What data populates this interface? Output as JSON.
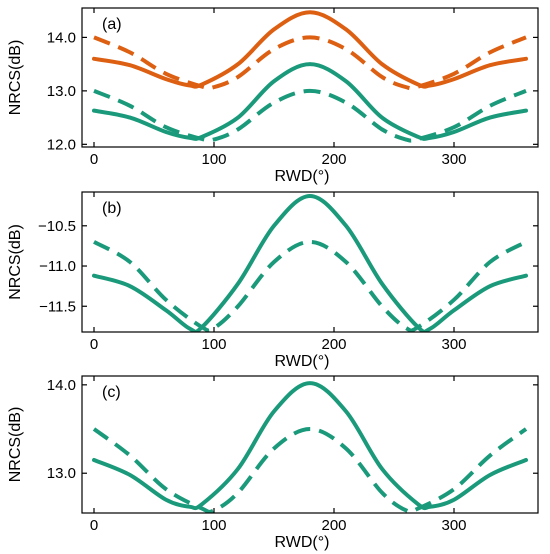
{
  "colors": {
    "orange": "#dd5f12",
    "green": "#1a9a7a"
  },
  "chart_data": [
    {
      "type": "line",
      "panel_label": "(a)",
      "xlabel": "RWD(°)",
      "ylabel": "NRCS(dB)",
      "xlim": [
        -10,
        370
      ],
      "ylim": [
        11.95,
        14.55
      ],
      "xticks": [
        0,
        100,
        200,
        300
      ],
      "xtick_labels": [
        "0",
        "100",
        "200",
        "300"
      ],
      "yticks": [
        12.0,
        13.0,
        14.0
      ],
      "ytick_labels": [
        "12.0",
        "13.0",
        "14.0"
      ],
      "grid": false,
      "series": [
        {
          "color": "orange",
          "dash": false,
          "x": [
            0,
            30,
            60,
            80,
            90,
            120,
            150,
            180,
            210,
            240,
            270,
            280,
            300,
            330,
            360
          ],
          "y": [
            13.6,
            13.48,
            13.22,
            13.1,
            13.12,
            13.5,
            14.15,
            14.47,
            14.15,
            13.5,
            13.12,
            13.1,
            13.22,
            13.48,
            13.6
          ]
        },
        {
          "color": "orange",
          "dash": true,
          "x": [
            0,
            30,
            60,
            90,
            100,
            120,
            150,
            180,
            210,
            240,
            260,
            270,
            300,
            330,
            360
          ],
          "y": [
            14.0,
            13.72,
            13.32,
            13.08,
            13.07,
            13.26,
            13.78,
            14.0,
            13.78,
            13.26,
            13.07,
            13.08,
            13.32,
            13.72,
            14.0
          ]
        },
        {
          "color": "green",
          "dash": false,
          "x": [
            0,
            30,
            60,
            80,
            90,
            120,
            150,
            180,
            210,
            240,
            270,
            280,
            300,
            330,
            360
          ],
          "y": [
            12.63,
            12.5,
            12.23,
            12.12,
            12.14,
            12.5,
            13.18,
            13.5,
            13.18,
            12.5,
            12.14,
            12.12,
            12.23,
            12.5,
            12.63
          ]
        },
        {
          "color": "green",
          "dash": true,
          "x": [
            0,
            30,
            60,
            90,
            100,
            120,
            150,
            180,
            210,
            240,
            260,
            270,
            300,
            330,
            360
          ],
          "y": [
            13.0,
            12.72,
            12.32,
            12.1,
            12.09,
            12.28,
            12.78,
            13.0,
            12.78,
            12.28,
            12.09,
            12.1,
            12.32,
            12.72,
            13.0
          ]
        }
      ]
    },
    {
      "type": "line",
      "panel_label": "(b)",
      "xlabel": "RWD(°)",
      "ylabel": "NRCS(dB)",
      "xlim": [
        -10,
        370
      ],
      "ylim": [
        -11.82,
        -10.08
      ],
      "xticks": [
        0,
        100,
        200,
        300
      ],
      "xtick_labels": [
        "0",
        "100",
        "200",
        "300"
      ],
      "yticks": [
        -10.5,
        -11.0,
        -11.5
      ],
      "ytick_labels": [
        "−10.5",
        "−11.0",
        "−11.5"
      ],
      "grid": false,
      "series": [
        {
          "color": "green",
          "dash": false,
          "x": [
            0,
            30,
            60,
            80,
            90,
            120,
            150,
            180,
            210,
            240,
            270,
            280,
            300,
            330,
            360
          ],
          "y": [
            -11.12,
            -11.25,
            -11.55,
            -11.78,
            -11.76,
            -11.22,
            -10.5,
            -10.13,
            -10.5,
            -11.22,
            -11.76,
            -11.78,
            -11.55,
            -11.25,
            -11.12
          ]
        },
        {
          "color": "green",
          "dash": true,
          "x": [
            0,
            30,
            60,
            90,
            100,
            120,
            150,
            180,
            210,
            240,
            260,
            270,
            300,
            330,
            360
          ],
          "y": [
            -10.7,
            -10.95,
            -11.42,
            -11.76,
            -11.77,
            -11.5,
            -10.95,
            -10.7,
            -10.95,
            -11.5,
            -11.77,
            -11.76,
            -11.42,
            -10.95,
            -10.7
          ]
        }
      ]
    },
    {
      "type": "line",
      "panel_label": "(c)",
      "xlabel": "RWD(°)",
      "ylabel": "NRCS(dB)",
      "xlim": [
        -10,
        370
      ],
      "ylim": [
        12.55,
        14.1
      ],
      "xticks": [
        0,
        100,
        200,
        300
      ],
      "xtick_labels": [
        "0",
        "100",
        "200",
        "300"
      ],
      "yticks": [
        13.0,
        14.0
      ],
      "ytick_labels": [
        "13.0",
        "14.0"
      ],
      "grid": false,
      "series": [
        {
          "color": "green",
          "dash": false,
          "x": [
            0,
            30,
            60,
            80,
            90,
            120,
            150,
            180,
            210,
            240,
            270,
            280,
            300,
            330,
            360
          ],
          "y": [
            13.15,
            12.98,
            12.7,
            12.62,
            12.65,
            13.05,
            13.7,
            14.02,
            13.7,
            13.05,
            12.65,
            12.62,
            12.7,
            12.98,
            13.15
          ]
        },
        {
          "color": "green",
          "dash": true,
          "x": [
            0,
            30,
            60,
            90,
            100,
            120,
            150,
            180,
            210,
            240,
            260,
            270,
            300,
            330,
            360
          ],
          "y": [
            13.5,
            13.2,
            12.82,
            12.6,
            12.58,
            12.78,
            13.28,
            13.5,
            13.28,
            12.78,
            12.58,
            12.6,
            12.82,
            13.2,
            13.5
          ]
        }
      ]
    }
  ]
}
